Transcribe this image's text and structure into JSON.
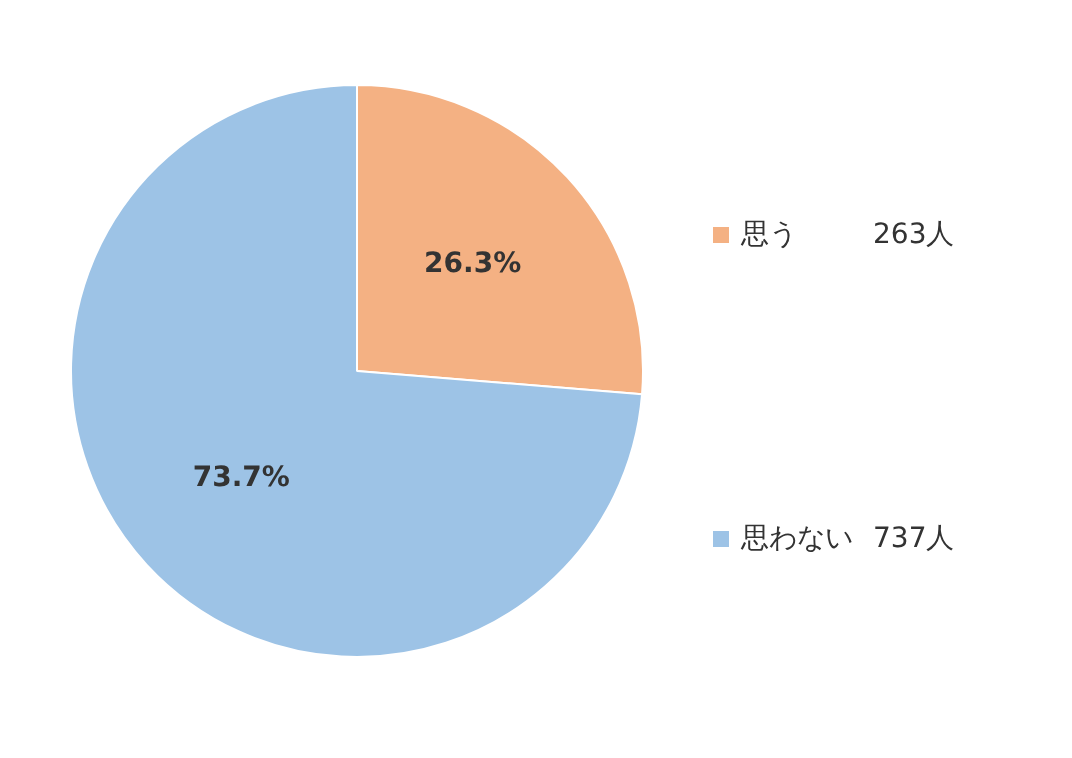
{
  "chart_data": {
    "type": "pie",
    "categories": [
      "思う",
      "思わない"
    ],
    "values": [
      26.3,
      73.7
    ],
    "colors": [
      "#f4b183",
      "#9dc3e6"
    ],
    "value_labels": [
      "26.3%",
      "73.7%"
    ],
    "annotations": [
      "263人",
      "737人"
    ],
    "legend": "right"
  }
}
